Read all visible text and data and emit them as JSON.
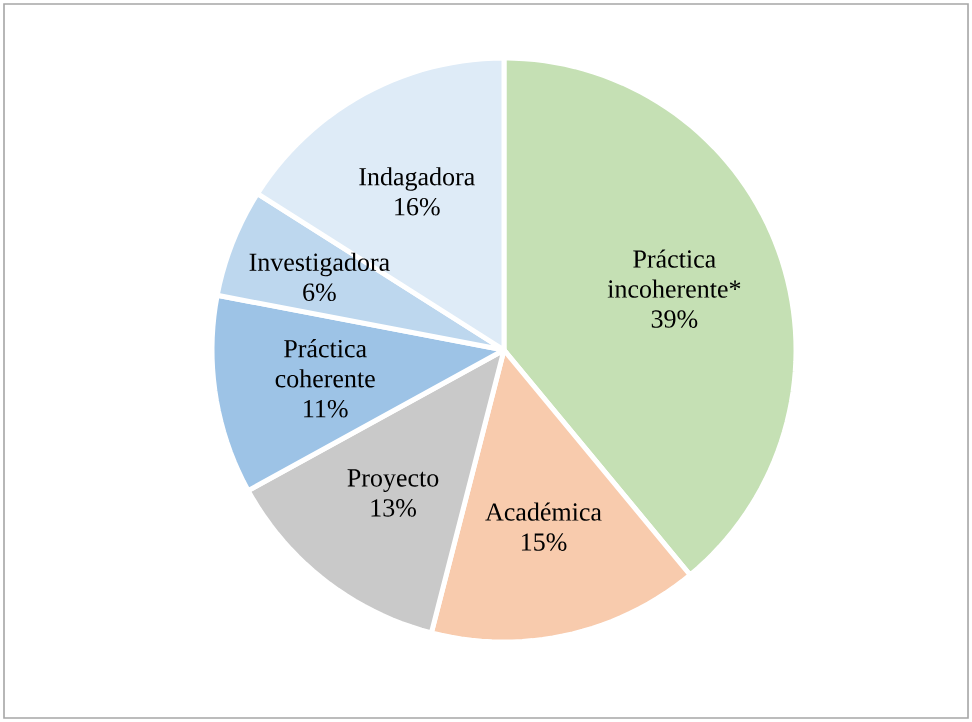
{
  "chart_data": {
    "type": "pie",
    "categories": [
      "Práctica incoherente*",
      "Académica",
      "Proyecto",
      "Práctica coherente",
      "Investigadora",
      "Indagadora"
    ],
    "values": [
      39,
      15,
      13,
      11,
      6,
      16
    ],
    "value_labels": [
      "39%",
      "15%",
      "13%",
      "11%",
      "6%",
      "16%"
    ],
    "colors": [
      "#c5e0b4",
      "#f8cbad",
      "#c9c9c9",
      "#9dc3e6",
      "#bdd7ee",
      "#deebf7"
    ]
  }
}
